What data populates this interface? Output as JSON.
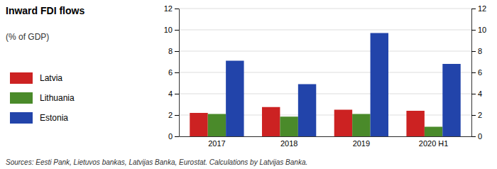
{
  "chart_data": {
    "type": "bar",
    "title": "Inward FDI flows",
    "subtitle": "(% of GDP)",
    "categories": [
      "2017",
      "2018",
      "2019",
      "2020 H1"
    ],
    "series": [
      {
        "name": "Latvia",
        "color": "#cc2222",
        "values": [
          2.2,
          2.75,
          2.5,
          2.4
        ]
      },
      {
        "name": "Lithuania",
        "color": "#4a8a2a",
        "values": [
          2.1,
          1.85,
          2.1,
          0.9
        ]
      },
      {
        "name": "Estonia",
        "color": "#2244aa",
        "values": [
          7.1,
          4.9,
          9.7,
          6.8
        ]
      }
    ],
    "ylim": [
      0,
      12
    ],
    "yticks": [
      0,
      2,
      4,
      6,
      8,
      10,
      12
    ],
    "y2lim": [
      0,
      12
    ],
    "y2ticks": [
      0,
      2,
      4,
      6,
      8,
      10,
      12
    ],
    "grid": true,
    "legend": "left",
    "annotations": [
      "Sources: Eesti Pank, Lietuvos bankas, Latvijas Banka, Eurostat. Calculations by Latvijas Banka."
    ]
  }
}
